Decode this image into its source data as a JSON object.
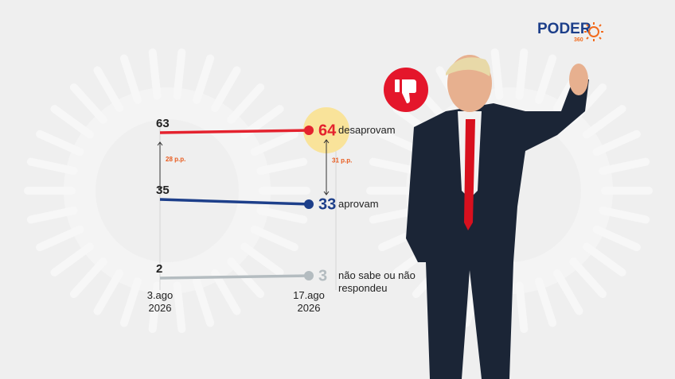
{
  "brand": {
    "name": "PODER",
    "number": "360"
  },
  "chart_data": {
    "type": "line",
    "categories": [
      "3.ago 2026",
      "17.ago 2026"
    ],
    "series": [
      {
        "name": "desaprovam",
        "color": "#e4222e",
        "values": [
          63,
          64
        ]
      },
      {
        "name": "aprovam",
        "color": "#1d3f8a",
        "values": [
          35,
          33
        ]
      },
      {
        "name": "não sabe ou não respondeu",
        "color": "#b4bcc0",
        "values": [
          2,
          3
        ]
      }
    ],
    "annotations": [
      {
        "text": "28 p.p.",
        "point": 0
      },
      {
        "text": "31 p.p.",
        "point": 1
      }
    ],
    "highlight_color": "#f9e39a"
  }
}
